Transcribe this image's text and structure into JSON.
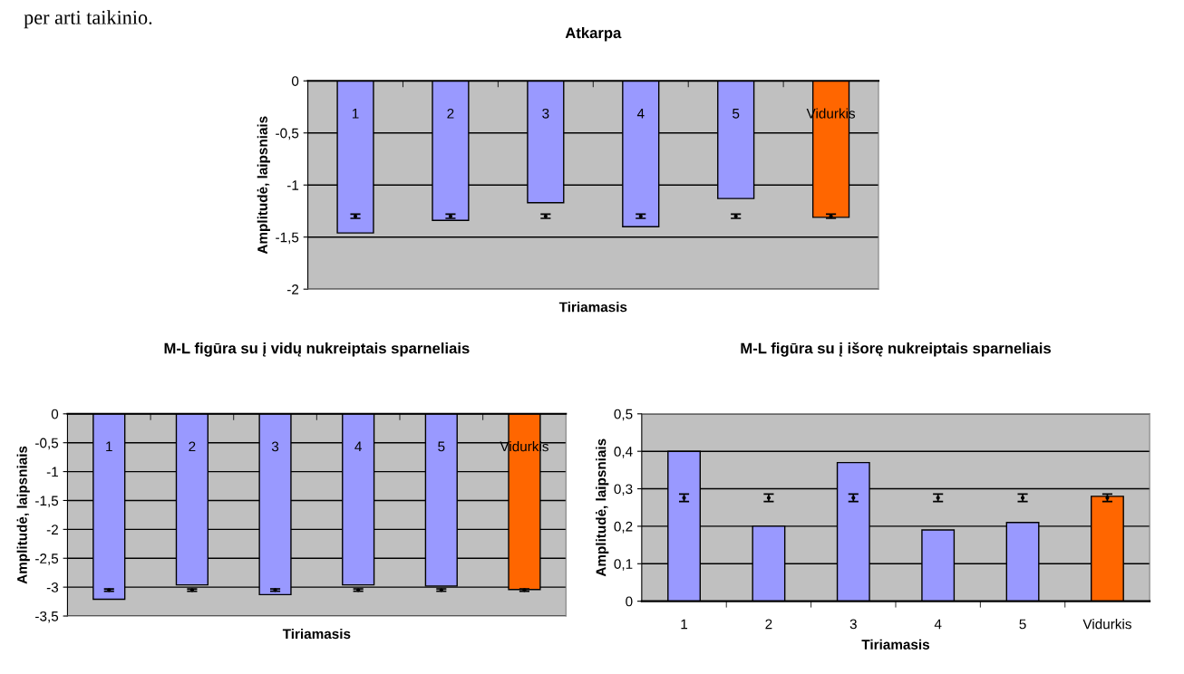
{
  "chart_data": [
    {
      "type": "bar",
      "title": "Atkarpa",
      "xlabel": "Tiriamasis",
      "ylabel": "Amplitudė, laipsniais",
      "annotations": [
        "per arti taikinio."
      ],
      "categories": [
        "1",
        "2",
        "3",
        "4",
        "5",
        "Vidurkis"
      ],
      "series": [
        {
          "colors": [
            "#9999ff",
            "#9999ff",
            "#9999ff",
            "#9999ff",
            "#9999ff",
            "#ff6600"
          ],
          "values": [
            -1.46,
            -1.34,
            -1.17,
            -1.4,
            -1.13,
            -1.31
          ]
        },
        {
          "type": "scatter",
          "color": "#000000",
          "marker": "circle",
          "x": [
            "1",
            "2",
            "3",
            "4",
            "5",
            "Vidurkis"
          ],
          "values": [
            -1.3,
            -1.3,
            -1.3,
            -1.3,
            -1.3,
            -1.3
          ],
          "errors": [
            0.02,
            0.02,
            0.02,
            0.02,
            0.02,
            0.02
          ]
        }
      ],
      "ylim": [
        -2,
        0
      ],
      "yticks": [
        {
          "value": -2,
          "label": "-2"
        },
        {
          "value": -1.5,
          "label": "-1,5"
        },
        {
          "value": -1,
          "label": "-1"
        },
        {
          "value": -0.5,
          "label": "-0,5"
        },
        0
      ],
      "grid": "y",
      "legend": false
    },
    {
      "type": "bar",
      "title": "M-L figūra su į vidų nukreiptais sparneliais",
      "xlabel": "Tiriamasis",
      "ylabel": "Amplitudė, laipsniais",
      "categories": [
        "1",
        "2",
        "3",
        "4",
        "5",
        "Vidurkis"
      ],
      "series": [
        {
          "colors": [
            "#9999ff",
            "#9999ff",
            "#9999ff",
            "#9999ff",
            "#9999ff",
            "#ff6600"
          ],
          "values": [
            -3.21,
            -2.96,
            -3.13,
            -2.96,
            -2.98,
            -3.04
          ]
        },
        {
          "type": "scatter",
          "color": "#000000",
          "marker": "circle",
          "x": [
            "1",
            "2",
            "3",
            "4",
            "5",
            "Vidurkis"
          ],
          "values": [
            -3.05,
            -3.05,
            -3.05,
            -3.05,
            -3.05,
            -3.05
          ],
          "errors": [
            0.02,
            0.02,
            0.02,
            0.02,
            0.02,
            0.02
          ]
        }
      ],
      "ylim": [
        -3.5,
        0
      ],
      "yticks": [
        {
          "value": -3.5,
          "label": "-3,5"
        },
        {
          "value": -3,
          "label": "-3"
        },
        {
          "value": -2.5,
          "label": "-2,5"
        },
        {
          "value": -2,
          "label": "-2"
        },
        {
          "value": -1.5,
          "label": "-1,5"
        },
        {
          "value": -1,
          "label": "-1"
        },
        {
          "value": -0.5,
          "label": "-0,5"
        },
        0
      ],
      "grid": "y",
      "legend": false
    },
    {
      "type": "bar",
      "title": "M-L figūra su į išorę nukreiptais sparneliais",
      "xlabel": "Tiriamasis",
      "ylabel": "Amplitudė, laipsniais",
      "categories": [
        "1",
        "2",
        "3",
        "4",
        "5",
        "Vidurkis"
      ],
      "series": [
        {
          "colors": [
            "#9999ff",
            "#9999ff",
            "#9999ff",
            "#9999ff",
            "#9999ff",
            "#ff6600"
          ],
          "values": [
            0.4,
            0.2,
            0.37,
            0.19,
            0.21,
            0.28
          ]
        },
        {
          "type": "scatter",
          "color": "#000000",
          "marker": "circle",
          "x": [
            "1",
            "2",
            "3",
            "4",
            "5",
            "Vidurkis"
          ],
          "values": [
            0.276,
            0.276,
            0.276,
            0.276,
            0.276,
            0.276
          ],
          "errors": [
            0.01,
            0.01,
            0.01,
            0.01,
            0.01,
            0.01
          ]
        }
      ],
      "ylim": [
        0,
        0.5
      ],
      "yticks": [
        0,
        {
          "value": 0.1,
          "label": "0,1"
        },
        {
          "value": 0.2,
          "label": "0,2"
        },
        {
          "value": 0.3,
          "label": "0,3"
        },
        {
          "value": 0.4,
          "label": "0,4"
        },
        {
          "value": 0.5,
          "label": "0,5"
        }
      ],
      "grid": "y",
      "legend": false
    }
  ]
}
